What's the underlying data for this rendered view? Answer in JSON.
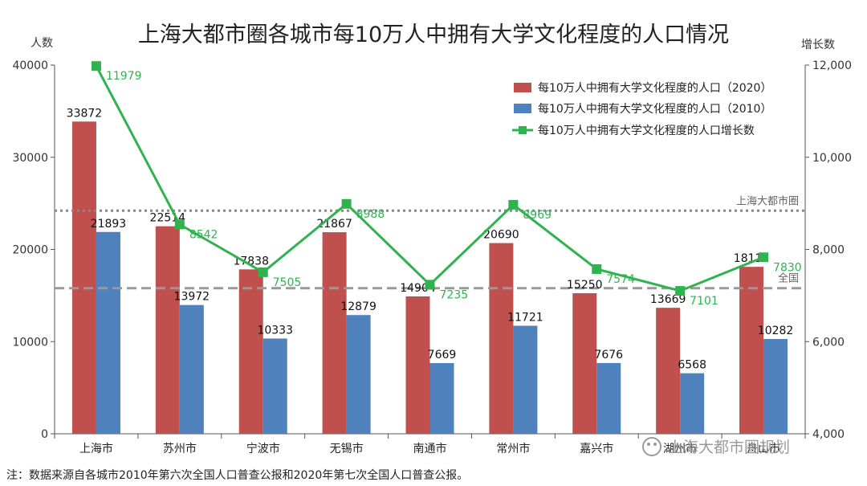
{
  "chart_data": {
    "type": "bar",
    "title": "上海大都市圈各城市每10万人中拥有大学文化程度的人口情况",
    "ylabel_left": "人数",
    "ylabel_right": "增长数",
    "ylim_left": [
      0,
      40000
    ],
    "ylim_right": [
      4000,
      12000
    ],
    "yticks_left": [
      "0",
      "10000",
      "20000",
      "30000",
      "40000"
    ],
    "yticks_right": [
      "4,000",
      "6,000",
      "8,000",
      "10,000",
      "12,000"
    ],
    "categories": [
      "上海市",
      "苏州市",
      "宁波市",
      "无锡市",
      "南通市",
      "常州市",
      "嘉兴市",
      "湖州市",
      "舟山市"
    ],
    "series": [
      {
        "name": "每10万人中拥有大学文化程度的人口（2020）",
        "type": "bar",
        "axis": "left",
        "color": "#c0504d",
        "values": [
          33872,
          22514,
          17838,
          21867,
          14904,
          20690,
          15250,
          13669,
          18112
        ]
      },
      {
        "name": "每10万人中拥有大学文化程度的人口（2010）",
        "type": "bar",
        "axis": "left",
        "color": "#4f81bd",
        "values": [
          21893,
          13972,
          10333,
          12879,
          7669,
          11721,
          7676,
          6568,
          10282
        ]
      },
      {
        "name": "每10万人中拥有大学文化程度的人口增长数",
        "type": "line",
        "axis": "right",
        "color": "#2eb34f",
        "values": [
          11979,
          8542,
          7505,
          8988,
          7235,
          8969,
          7574,
          7101,
          7830
        ]
      }
    ],
    "reference_lines": [
      {
        "label": "上海大都市圈",
        "value": 24200,
        "color": "#888888",
        "style": "dotted"
      },
      {
        "label": "全国",
        "value": 15800,
        "color": "#999999",
        "style": "dashed"
      }
    ],
    "legend_position": "top-right",
    "grid": false
  },
  "footnote": "注：数据来源自各城市2010年第六次全国人口普查公报和2020年第七次全国人口普查公报。",
  "watermark": "上海大都市圈规划"
}
